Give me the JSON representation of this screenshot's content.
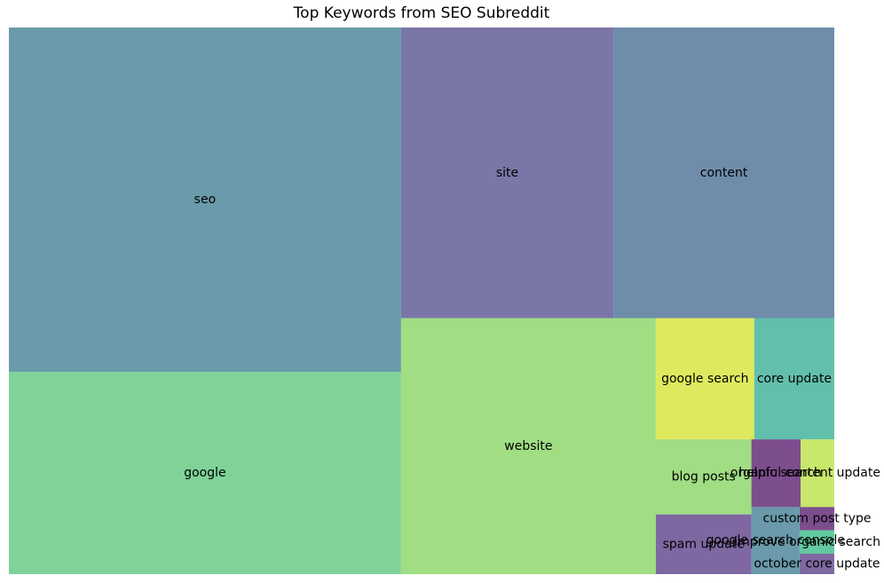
{
  "chart_data": {
    "type": "treemap",
    "title": "Top Keywords from SEO Subreddit",
    "items": [
      {
        "label": "seo",
        "value": 2672,
        "color": "#6a9aab"
      },
      {
        "label": "google",
        "value": 1569,
        "color": "#7fd399"
      },
      {
        "label": "site",
        "value": 1221,
        "color": "#7b76a8"
      },
      {
        "label": "content",
        "value": 1270,
        "color": "#6f8cab"
      },
      {
        "label": "website",
        "value": 1290,
        "color": "#a0dd83"
      },
      {
        "label": "google search",
        "value": 236,
        "color": "#dfe95e"
      },
      {
        "label": "core update",
        "value": 192,
        "color": "#62bfab"
      },
      {
        "label": "blog posts",
        "value": 142,
        "color": "#a0dd83"
      },
      {
        "label": "spam update",
        "value": 113,
        "color": "#7f68a2"
      },
      {
        "label": "organic search",
        "value": 66,
        "color": "#7c4e8e"
      },
      {
        "label": "helpful content update",
        "value": 45,
        "color": "#c8e86b"
      },
      {
        "label": "google search console",
        "value": 64,
        "color": "#6a9aab"
      },
      {
        "label": "custom post type",
        "value": 16,
        "color": "#7c4e8e"
      },
      {
        "label": "improve organic search",
        "value": 16,
        "color": "#62c9a1"
      },
      {
        "label": "october core update",
        "value": 14,
        "color": "#7f68a2"
      }
    ]
  }
}
